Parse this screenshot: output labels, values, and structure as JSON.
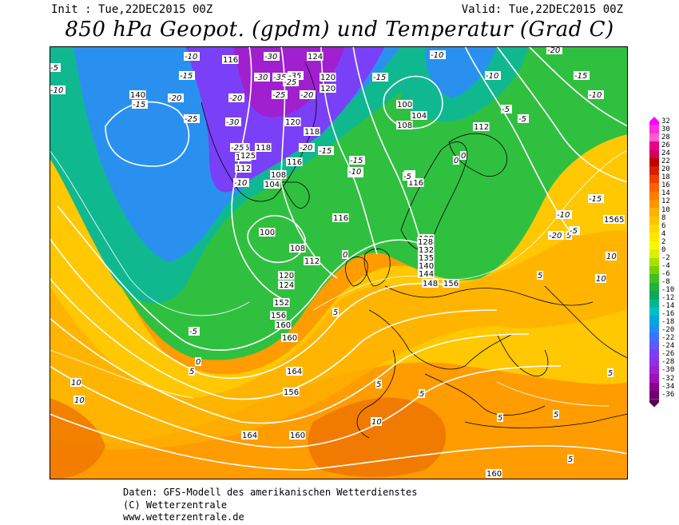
{
  "header": {
    "init": "Init : Tue,22DEC2015 00Z",
    "valid": "Valid: Tue,22DEC2015 00Z",
    "title": "850 hPa Geopot. (gpdm) und Temperatur (Grad C)"
  },
  "legend": {
    "values": [
      "32",
      "30",
      "28",
      "26",
      "24",
      "22",
      "20",
      "18",
      "16",
      "14",
      "12",
      "10",
      "8",
      "6",
      "4",
      "2",
      "0",
      "-2",
      "-4",
      "-6",
      "-8",
      "-10",
      "-12",
      "-14",
      "-16",
      "-18",
      "-20",
      "-22",
      "-24",
      "-26",
      "-28",
      "-30",
      "-32",
      "-34",
      "-36"
    ],
    "colors": [
      "#ff00ff",
      "#ff30e0",
      "#ff5fc8",
      "#e8008a",
      "#d0005a",
      "#c00000",
      "#d82000",
      "#ee4000",
      "#ff6000",
      "#ff7c00",
      "#ff9600",
      "#ffb000",
      "#ffc400",
      "#ffd800",
      "#ffe800",
      "#f8f800",
      "#dcf000",
      "#a8e000",
      "#78d000",
      "#40c020",
      "#20b040",
      "#10a858",
      "#00b890",
      "#00c0c0",
      "#00a8e0",
      "#2090f0",
      "#4070ff",
      "#6058ff",
      "#7a40f8",
      "#9030e8",
      "#a020d0",
      "#a010b8",
      "#8c0090",
      "#700070",
      "#580058"
    ]
  },
  "map": {
    "geopotential_labels": [
      "116",
      "124",
      "120",
      "120",
      "100",
      "104",
      "108",
      "112",
      "140",
      "116",
      "112",
      "118",
      "125",
      "112",
      "108",
      "104",
      "120",
      "118",
      "116",
      "116",
      "104",
      "100",
      "108",
      "112",
      "120",
      "124",
      "116",
      "128",
      "132",
      "136",
      "140",
      "144",
      "148",
      "152",
      "156",
      "160",
      "160",
      "164",
      "164",
      "156",
      "160",
      "160",
      "128",
      "132",
      "135",
      "140",
      "144",
      "156",
      "1565"
    ],
    "temperature_labels": [
      "-30",
      "-35",
      "-30",
      "-25",
      "-20",
      "-15",
      "-10",
      "-5",
      "-10",
      "-15",
      "-20",
      "-25",
      "-30",
      "-35",
      "-25",
      "-20",
      "-15",
      "-10",
      "-5",
      "-20",
      "-15",
      "-10",
      "-5",
      "-10",
      "-5",
      "0",
      "-5",
      "-10",
      "-15",
      "-20",
      "-25",
      "-15",
      "-10",
      "-5",
      "0",
      "5",
      "10",
      "5",
      "10",
      "10",
      "10",
      "5",
      "5",
      "5",
      "0",
      "5",
      "5",
      "10",
      "5",
      "5",
      "-5",
      "-10",
      "-15",
      "-20",
      "-10",
      "-5",
      "0",
      "5"
    ]
  },
  "footer": {
    "line1": "Daten: GFS-Modell des amerikanischen Wetterdienstes",
    "line2": "(C) Wetterzentrale",
    "line3": "www.wetterzentrale.de"
  }
}
